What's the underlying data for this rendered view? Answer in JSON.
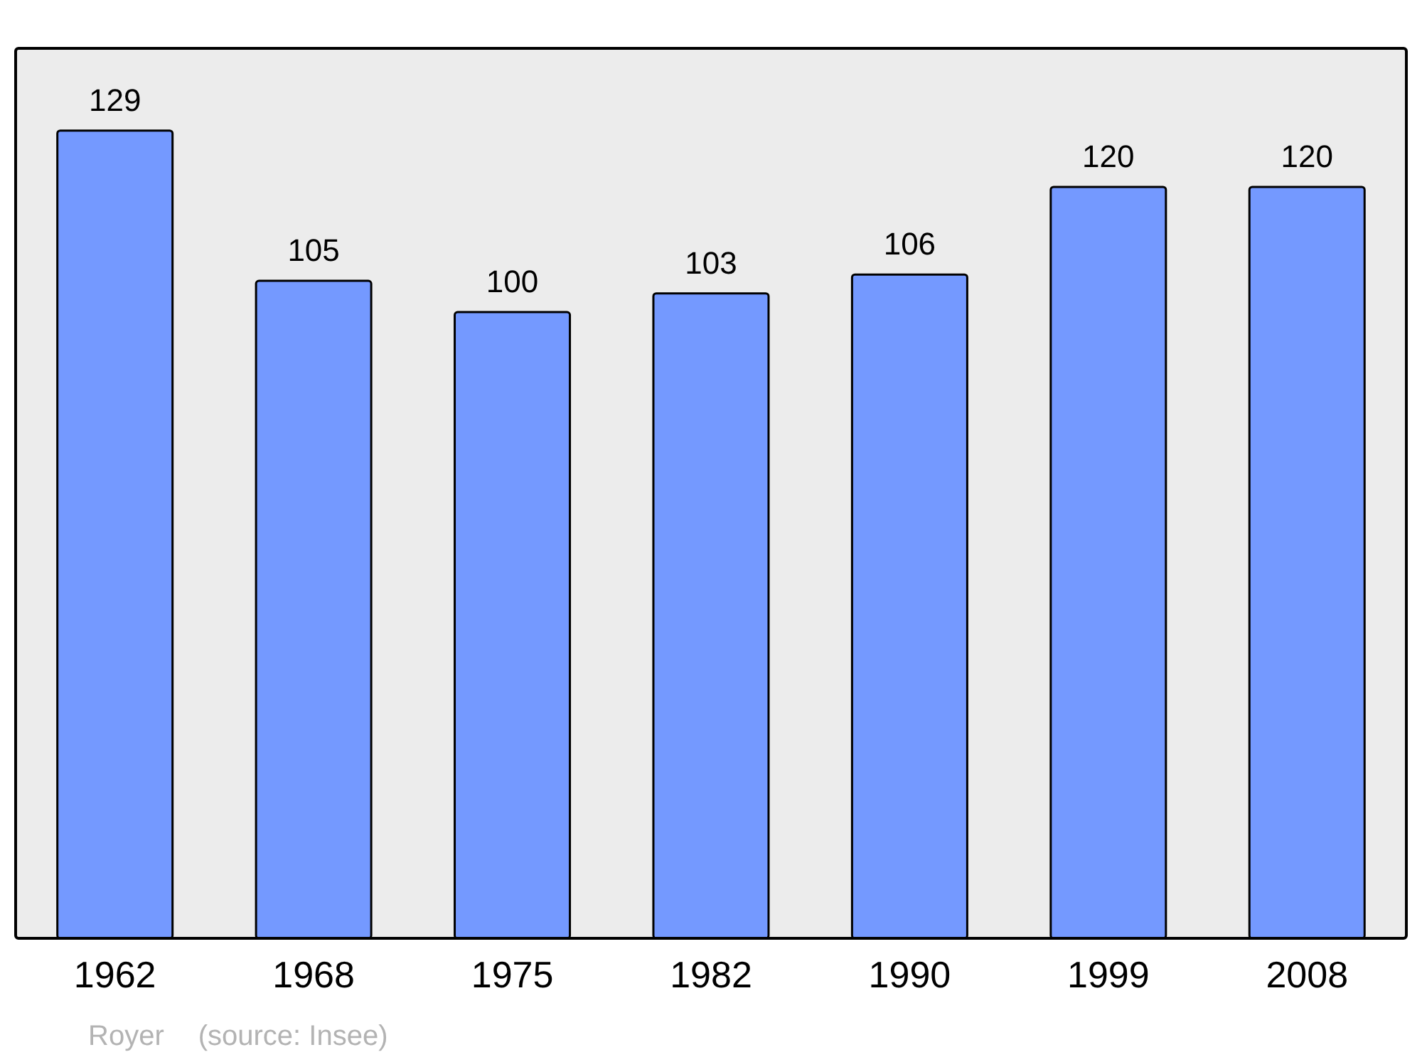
{
  "chart_data": {
    "type": "bar",
    "categories": [
      "1962",
      "1968",
      "1975",
      "1982",
      "1990",
      "1999",
      "2008"
    ],
    "values": [
      129,
      105,
      100,
      103,
      106,
      120,
      120
    ],
    "color": "#7499ff",
    "data_labels": true,
    "annotations": [
      "Royer",
      "(source: Insee)"
    ]
  }
}
